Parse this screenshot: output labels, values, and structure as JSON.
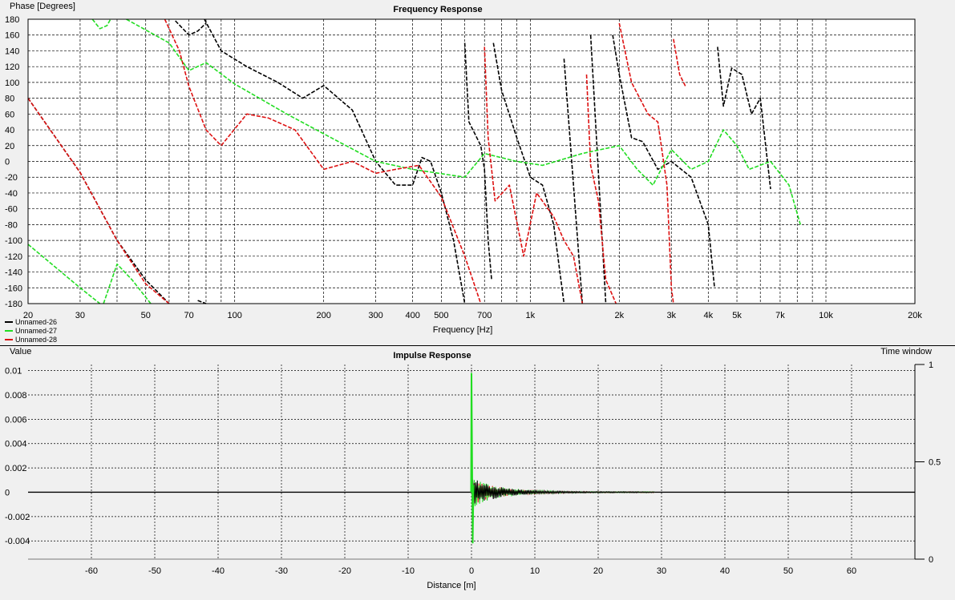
{
  "colors": {
    "background": "#f0f0f0",
    "plot": "#ffffff",
    "grid": "#000000",
    "black": "#000000",
    "green": "#22dd22",
    "red": "#dd1111"
  },
  "chart_data": [
    {
      "type": "line",
      "title": "Frequency Response",
      "xlabel": "Frequency [Hz]",
      "ylabel": "Phase [Degrees]",
      "xscale": "log",
      "xlim": [
        20,
        20000
      ],
      "ylim": [
        -180,
        180
      ],
      "grid": true,
      "legend": "bottom-left",
      "xticks": [
        {
          "v": 20,
          "label": "20"
        },
        {
          "v": 30,
          "label": "30"
        },
        {
          "v": 50,
          "label": "50"
        },
        {
          "v": 70,
          "label": "70"
        },
        {
          "v": 100,
          "label": "100"
        },
        {
          "v": 200,
          "label": "200"
        },
        {
          "v": 300,
          "label": "300"
        },
        {
          "v": 400,
          "label": "400"
        },
        {
          "v": 500,
          "label": "500"
        },
        {
          "v": 700,
          "label": "700"
        },
        {
          "v": 1000,
          "label": "1k"
        },
        {
          "v": 2000,
          "label": "2k"
        },
        {
          "v": 3000,
          "label": "3k"
        },
        {
          "v": 4000,
          "label": "4k"
        },
        {
          "v": 5000,
          "label": "5k"
        },
        {
          "v": 7000,
          "label": "7k"
        },
        {
          "v": 10000,
          "label": "10k"
        },
        {
          "v": 20000,
          "label": "20k"
        }
      ],
      "yticks": [
        180,
        160,
        140,
        120,
        100,
        80,
        60,
        40,
        20,
        0,
        -20,
        -40,
        -60,
        -80,
        -100,
        -120,
        -140,
        -160,
        -180
      ],
      "series": [
        {
          "name": "Unnamed-26",
          "color": "#000000",
          "segments": [
            [
              [
                20,
                80
              ],
              [
                30,
                -14
              ],
              [
                40,
                -100
              ],
              [
                50,
                -150
              ],
              [
                60,
                -180
              ]
            ],
            [
              [
                75,
                -176
              ],
              [
                80,
                -180
              ]
            ],
            [
              [
                63,
                178
              ],
              [
                70,
                160
              ],
              [
                75,
                165
              ],
              [
                80,
                175
              ]
            ],
            [
              [
                79,
                180
              ],
              [
                90,
                140
              ],
              [
                110,
                120
              ],
              [
                140,
                100
              ],
              [
                170,
                80
              ],
              [
                200,
                96
              ],
              [
                250,
                65
              ],
              [
                300,
                0
              ],
              [
                350,
                -30
              ],
              [
                400,
                -30
              ],
              [
                430,
                5
              ],
              [
                460,
                0
              ],
              [
                500,
                -40
              ],
              [
                550,
                -100
              ],
              [
                600,
                -180
              ]
            ],
            [
              [
                600,
                150
              ],
              [
                620,
                50
              ],
              [
                680,
                20
              ],
              [
                700,
                -10
              ],
              [
                720,
                -100
              ],
              [
                740,
                -150
              ]
            ],
            [
              [
                750,
                150
              ],
              [
                800,
                90
              ],
              [
                900,
                30
              ],
              [
                1000,
                -20
              ],
              [
                1100,
                -30
              ],
              [
                1200,
                -80
              ],
              [
                1300,
                -180
              ]
            ],
            [
              [
                1300,
                130
              ],
              [
                1500,
                -180
              ]
            ],
            [
              [
                1600,
                160
              ],
              [
                1800,
                -180
              ]
            ],
            [
              [
                1900,
                160
              ],
              [
                2000,
                110
              ],
              [
                2200,
                30
              ],
              [
                2400,
                25
              ],
              [
                2700,
                -10
              ],
              [
                3000,
                0
              ],
              [
                3500,
                -20
              ],
              [
                4000,
                -80
              ],
              [
                4200,
                -160
              ]
            ],
            [
              [
                4300,
                145
              ],
              [
                4500,
                70
              ],
              [
                4800,
                118
              ],
              [
                5200,
                110
              ],
              [
                5600,
                60
              ],
              [
                6000,
                80
              ],
              [
                6500,
                -35
              ]
            ]
          ]
        },
        {
          "name": "Unnamed-27",
          "color": "#22dd22",
          "segments": [
            [
              [
                20,
                -105
              ],
              [
                30,
                -160
              ],
              [
                35,
                -180
              ]
            ],
            [
              [
                36,
                -180
              ],
              [
                40,
                -130
              ],
              [
                45,
                -150
              ],
              [
                52,
                -180
              ]
            ],
            [
              [
                33,
                180
              ],
              [
                35,
                168
              ],
              [
                37,
                172
              ],
              [
                38,
                180
              ]
            ],
            [
              [
                43,
                180
              ],
              [
                60,
                150
              ],
              [
                70,
                115
              ],
              [
                80,
                125
              ],
              [
                100,
                98
              ],
              [
                150,
                60
              ],
              [
                200,
                35
              ],
              [
                300,
                0
              ],
              [
                400,
                -10
              ],
              [
                600,
                -20
              ],
              [
                700,
                10
              ],
              [
                900,
                0
              ],
              [
                1100,
                -5
              ],
              [
                1500,
                10
              ],
              [
                2000,
                20
              ],
              [
                2300,
                -10
              ],
              [
                2600,
                -30
              ],
              [
                3000,
                15
              ],
              [
                3500,
                -10
              ],
              [
                4000,
                0
              ],
              [
                4500,
                40
              ],
              [
                5000,
                20
              ],
              [
                5500,
                -10
              ],
              [
                6500,
                0
              ],
              [
                7500,
                -30
              ],
              [
                8200,
                -80
              ]
            ]
          ]
        },
        {
          "name": "Unnamed-28",
          "color": "#dd1111",
          "segments": [
            [
              [
                20,
                80
              ],
              [
                30,
                -14
              ],
              [
                40,
                -100
              ],
              [
                50,
                -155
              ],
              [
                60,
                -180
              ]
            ],
            [
              [
                58,
                180
              ],
              [
                65,
                140
              ],
              [
                70,
                95
              ],
              [
                80,
                40
              ],
              [
                90,
                20
              ],
              [
                110,
                60
              ],
              [
                130,
                55
              ],
              [
                160,
                40
              ],
              [
                200,
                -10
              ],
              [
                250,
                0
              ],
              [
                300,
                -15
              ],
              [
                350,
                -10
              ],
              [
                420,
                -5
              ],
              [
                500,
                -45
              ],
              [
                600,
                -120
              ],
              [
                680,
                -180
              ]
            ],
            [
              [
                700,
                145
              ],
              [
                720,
                30
              ],
              [
                760,
                -50
              ],
              [
                850,
                -30
              ],
              [
                950,
                -120
              ],
              [
                1050,
                -40
              ],
              [
                1200,
                -70
              ],
              [
                1300,
                -100
              ],
              [
                1400,
                -120
              ],
              [
                1500,
                -180
              ]
            ],
            [
              [
                1550,
                110
              ],
              [
                1600,
                -5
              ],
              [
                1700,
                -50
              ],
              [
                1800,
                -150
              ],
              [
                1950,
                -180
              ]
            ],
            [
              [
                2000,
                175
              ],
              [
                2200,
                100
              ],
              [
                2500,
                60
              ],
              [
                2700,
                50
              ],
              [
                2900,
                -30
              ],
              [
                3000,
                -160
              ],
              [
                3050,
                -180
              ]
            ],
            [
              [
                3050,
                155
              ],
              [
                3200,
                110
              ],
              [
                3350,
                95
              ]
            ]
          ]
        }
      ]
    },
    {
      "type": "line",
      "title": "Impulse Response",
      "xlabel": "Distance [m]",
      "ylabel": "Value",
      "y2label": "Time window",
      "xlim": [
        -70,
        70
      ],
      "ylim": [
        -0.0055,
        0.0105
      ],
      "y2lim": [
        0,
        1
      ],
      "grid": true,
      "xticks": [
        -60,
        -50,
        -40,
        -30,
        -20,
        -10,
        0,
        10,
        20,
        30,
        40,
        50,
        60
      ],
      "yticks": [
        {
          "v": 0.01,
          "label": "0.01"
        },
        {
          "v": 0.008,
          "label": "0.008"
        },
        {
          "v": 0.006,
          "label": "0.006"
        },
        {
          "v": 0.004,
          "label": "0.004"
        },
        {
          "v": 0.002,
          "label": "0.002"
        },
        {
          "v": 0,
          "label": "0"
        },
        {
          "v": -0.002,
          "label": "-0.002"
        },
        {
          "v": -0.004,
          "label": "-0.004"
        }
      ],
      "y2ticks": [
        {
          "v": 1,
          "label": "1"
        },
        {
          "v": 0.5,
          "label": "0.5"
        },
        {
          "v": 0,
          "label": "0"
        }
      ],
      "peak": {
        "x": 0,
        "max": 0.0098,
        "min": -0.0042
      },
      "decay_end_x": 29,
      "time_window_level": 0
    }
  ]
}
